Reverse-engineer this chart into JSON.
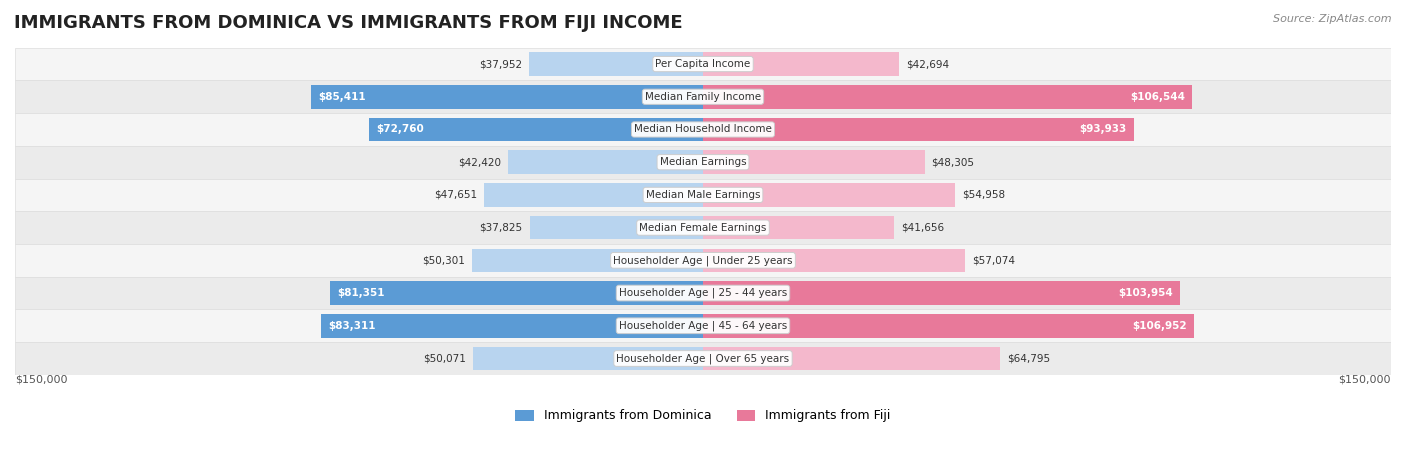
{
  "title": "IMMIGRANTS FROM DOMINICA VS IMMIGRANTS FROM FIJI INCOME",
  "source": "Source: ZipAtlas.com",
  "categories": [
    "Per Capita Income",
    "Median Family Income",
    "Median Household Income",
    "Median Earnings",
    "Median Male Earnings",
    "Median Female Earnings",
    "Householder Age | Under 25 years",
    "Householder Age | 25 - 44 years",
    "Householder Age | 45 - 64 years",
    "Householder Age | Over 65 years"
  ],
  "dominica_values": [
    37952,
    85411,
    72760,
    42420,
    47651,
    37825,
    50301,
    81351,
    83311,
    50071
  ],
  "fiji_values": [
    42694,
    106544,
    93933,
    48305,
    54958,
    41656,
    57074,
    103954,
    106952,
    64795
  ],
  "dominica_labels": [
    "$37,952",
    "$85,411",
    "$72,760",
    "$42,420",
    "$47,651",
    "$37,825",
    "$50,301",
    "$81,351",
    "$83,311",
    "$50,071"
  ],
  "fiji_labels": [
    "$42,694",
    "$106,544",
    "$93,933",
    "$48,305",
    "$54,958",
    "$41,656",
    "$57,074",
    "$103,954",
    "$106,952",
    "$64,795"
  ],
  "dominica_color_dark": "#5b9bd5",
  "dominica_color_light": "#b8d4ef",
  "fiji_color_dark": "#e8799a",
  "fiji_color_light": "#f4b8cc",
  "max_value": 150000,
  "background_color": "#ffffff",
  "row_bg_color": "#f0f0f0",
  "legend_dominica": "Immigrants from Dominica",
  "legend_fiji": "Immigrants from Fiji",
  "xlabel_left": "$150,000",
  "xlabel_right": "$150,000"
}
